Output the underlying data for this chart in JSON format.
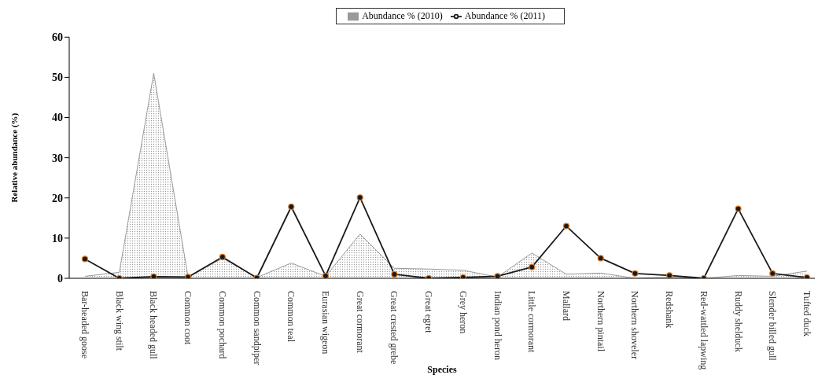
{
  "chart_data": {
    "type": "area",
    "xlabel": "Species",
    "ylabel": "Relative abundance  (%)",
    "categories": [
      "Bar-headed goose",
      "Black wing stilt",
      "Black headed gull",
      "Common coot",
      "Common pochard",
      "Common sandpiper",
      "Common teal",
      "Eurasian wigeon",
      "Great cormorant",
      "Great crested grebe",
      "Great egret",
      "Grey heron",
      "Indian pond heron",
      "Little cormorant",
      "Mallard",
      "Northern pintail",
      "Northern shoveler",
      "Redshank",
      "Red-wattled lapwing",
      "Ruddy shelduck",
      "Slender billed gull",
      "Tufted duck"
    ],
    "series": [
      {
        "name": "Abundance % (2010)",
        "color": "#9a9a9a",
        "values": [
          0.5,
          1.5,
          51,
          0.3,
          5,
          0.2,
          3.8,
          0.5,
          11,
          2.5,
          2.3,
          2,
          0.3,
          6.3,
          1,
          1.3,
          0,
          0.3,
          0,
          0.7,
          0.5,
          1.8
        ]
      },
      {
        "name": "Abundance % (2011)",
        "type": "line",
        "color": "#1a1a1a",
        "marker": "circle",
        "values": [
          4.8,
          0,
          0.4,
          0.3,
          5.3,
          0.1,
          17.8,
          0.6,
          20.1,
          1,
          0,
          0.2,
          0.5,
          2.8,
          13,
          5,
          1.2,
          0.7,
          0,
          17.3,
          1.2,
          0.2
        ]
      }
    ],
    "ylim": [
      0,
      60
    ],
    "yticks": [
      0,
      10,
      20,
      30,
      40,
      50,
      60
    ],
    "legend": "top right"
  }
}
